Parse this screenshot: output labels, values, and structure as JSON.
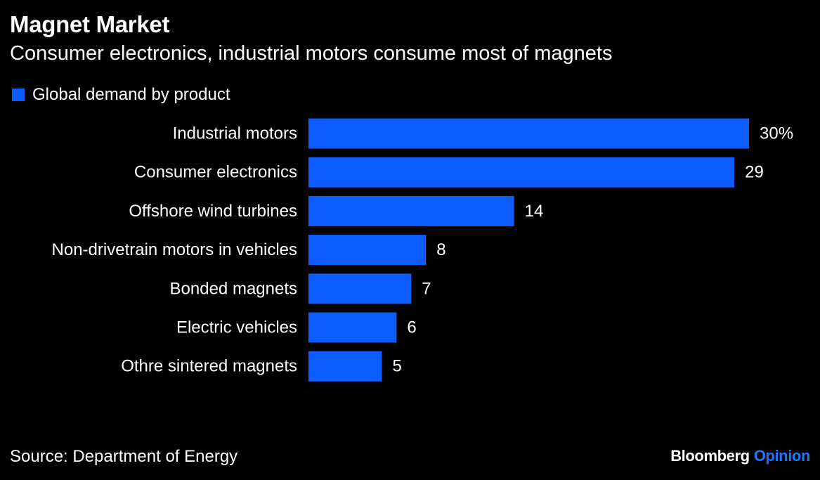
{
  "header": {
    "title": "Magnet Market",
    "subtitle": "Consumer electronics, industrial motors consume most of magnets"
  },
  "legend": {
    "label": "Global demand by product"
  },
  "footer": {
    "source": "Source: Department of Energy",
    "brand_primary": "Bloomberg",
    "brand_secondary": "Opinion"
  },
  "colors": {
    "background": "#000000",
    "bar": "#0c5cff",
    "text": "#ffffff",
    "brand_accent": "#1f74ff"
  },
  "chart_data": {
    "type": "bar",
    "orientation": "horizontal",
    "title": "Magnet Market",
    "subtitle": "Consumer electronics, industrial motors consume most of magnets",
    "categories": [
      "Industrial motors",
      "Consumer electronics",
      "Offshore wind turbines",
      "Non-drivetrain motors in vehicles",
      "Bonded magnets",
      "Electric vehicles",
      "Othre sintered magnets"
    ],
    "series": [
      {
        "name": "Global demand by product",
        "values": [
          30,
          29,
          14,
          8,
          7,
          6,
          5
        ]
      }
    ],
    "data_labels": [
      "30%",
      "29",
      "14",
      "8",
      "7",
      "6",
      "5"
    ],
    "unit": "%",
    "xlim": [
      0,
      30
    ],
    "grid": false,
    "legend_position": "top-left",
    "source": "Source: Department of Energy"
  }
}
